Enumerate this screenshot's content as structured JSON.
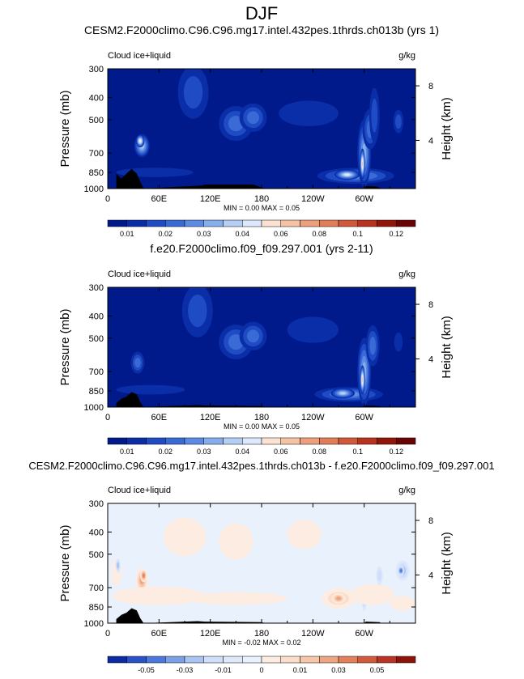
{
  "page": {
    "title": "DJF"
  },
  "scales": {
    "abs": {
      "colors": [
        "#001a8c",
        "#0a2ea8",
        "#1f4cc4",
        "#3a6ad6",
        "#5b8be2",
        "#86aeec",
        "#b4cef4",
        "#dce8fb",
        "#fbe2d2",
        "#f6c2a4",
        "#eea07c",
        "#e27d58",
        "#d1583a",
        "#b8321f",
        "#911509",
        "#6a0404"
      ],
      "labels": [
        {
          "text": "0.01",
          "at": 1
        },
        {
          "text": "0.02",
          "at": 3
        },
        {
          "text": "0.03",
          "at": 5
        },
        {
          "text": "0.04",
          "at": 7
        },
        {
          "text": "0.06",
          "at": 9
        },
        {
          "text": "0.08",
          "at": 11
        },
        {
          "text": "0.1",
          "at": 13
        },
        {
          "text": "0.12",
          "at": 15
        }
      ]
    },
    "diff": {
      "colors": [
        "#0b2aa3",
        "#2752c9",
        "#4a78df",
        "#7aa0ea",
        "#a9c4f3",
        "#cfdefa",
        "#dde9fb",
        "#e9f1fd",
        "#fdece2",
        "#fbddc9",
        "#f7c6a8",
        "#f0a582",
        "#e5805c",
        "#d45a3c",
        "#bb3322",
        "#8f1209"
      ],
      "labels": [
        {
          "text": "-0.05",
          "at": 2
        },
        {
          "text": "-0.03",
          "at": 4
        },
        {
          "text": "-0.01",
          "at": 6
        },
        {
          "text": "0",
          "at": 8
        },
        {
          "text": "0.01",
          "at": 10
        },
        {
          "text": "0.03",
          "at": 12
        },
        {
          "text": "0.05",
          "at": 14
        }
      ]
    }
  },
  "chart_data": [
    {
      "type": "heatmap",
      "title": "CESM2.F2000climo.C96.C96.mg17.intel.432pes.1thrds.ch013b (yrs 1)",
      "variable": "Cloud ice+liquid",
      "units": "g/kg",
      "ylabel": "Pressure (mb)",
      "y2label": "Height (km)",
      "x_ticks": [
        "0",
        "60E",
        "120E",
        "180",
        "120W",
        "60W"
      ],
      "y_ticks": [
        "300",
        "400",
        "500",
        "700",
        "850",
        "1000"
      ],
      "y2_ticks": [
        "8",
        "4"
      ],
      "stats": "MIN =   0.00  MAX =   0.05",
      "scale": "abs",
      "xlim": [
        0,
        360
      ],
      "ylim": [
        1000,
        300
      ],
      "background_level": 0,
      "features": [
        {
          "lon": 40,
          "p": 650,
          "wlon": 9,
          "wp": 75,
          "level": 6
        },
        {
          "lon": 38,
          "p": 620,
          "wlon": 5,
          "wp": 40,
          "level": 8
        },
        {
          "lon": 55,
          "p": 850,
          "wlon": 45,
          "wp": 40,
          "level": 1
        },
        {
          "lon": 100,
          "p": 380,
          "wlon": 18,
          "wp": 130,
          "level": 2
        },
        {
          "lon": 150,
          "p": 520,
          "wlon": 20,
          "wp": 90,
          "level": 3
        },
        {
          "lon": 170,
          "p": 490,
          "wlon": 16,
          "wp": 70,
          "level": 3
        },
        {
          "lon": 235,
          "p": 470,
          "wlon": 35,
          "wp": 60,
          "level": 1
        },
        {
          "lon": 290,
          "p": 880,
          "wlon": 45,
          "wp": 70,
          "level": 4
        },
        {
          "lon": 280,
          "p": 870,
          "wlon": 15,
          "wp": 45,
          "level": 7
        },
        {
          "lon": 300,
          "p": 700,
          "wlon": 8,
          "wp": 230,
          "level": 5
        },
        {
          "lon": 298,
          "p": 780,
          "wlon": 3,
          "wp": 120,
          "level": 9
        },
        {
          "lon": 307,
          "p": 550,
          "wlon": 9,
          "wp": 110,
          "level": 3
        },
        {
          "lon": 312,
          "p": 480,
          "wlon": 6,
          "wp": 130,
          "level": 2
        },
        {
          "lon": 340,
          "p": 510,
          "wlon": 6,
          "wp": 60,
          "level": 2
        }
      ],
      "terrain": [
        [
          10,
          860
        ],
        [
          16,
          905
        ],
        [
          22,
          860
        ],
        [
          28,
          820
        ],
        [
          34,
          860
        ],
        [
          38,
          930
        ],
        [
          42,
          1000
        ],
        [
          110,
          970
        ],
        [
          114,
          960
        ],
        [
          170,
          960
        ],
        [
          184,
          1000
        ],
        [
          300,
          1000
        ],
        [
          302,
          975
        ],
        [
          315,
          980
        ],
        [
          320,
          1000
        ]
      ]
    },
    {
      "type": "heatmap",
      "title": "f.e20.F2000climo.f09_f09.297.001 (yrs 2-11)",
      "variable": "Cloud ice+liquid",
      "units": "g/kg",
      "ylabel": "Pressure (mb)",
      "y2label": "Height (km)",
      "x_ticks": [
        "0",
        "60E",
        "120E",
        "180",
        "120W",
        "60W"
      ],
      "y_ticks": [
        "300",
        "400",
        "500",
        "700",
        "850",
        "1000"
      ],
      "y2_ticks": [
        "8",
        "4"
      ],
      "stats": "MIN =   0.00  MAX =   0.05",
      "scale": "abs",
      "xlim": [
        0,
        360
      ],
      "ylim": [
        1000,
        300
      ],
      "background_level": 0,
      "features": [
        {
          "lon": 35,
          "p": 640,
          "wlon": 8,
          "wp": 70,
          "level": 3
        },
        {
          "lon": 50,
          "p": 840,
          "wlon": 40,
          "wp": 40,
          "level": 1
        },
        {
          "lon": 105,
          "p": 380,
          "wlon": 18,
          "wp": 130,
          "level": 2
        },
        {
          "lon": 150,
          "p": 520,
          "wlon": 20,
          "wp": 90,
          "level": 3
        },
        {
          "lon": 170,
          "p": 490,
          "wlon": 16,
          "wp": 70,
          "level": 3
        },
        {
          "lon": 240,
          "p": 460,
          "wlon": 30,
          "wp": 60,
          "level": 1
        },
        {
          "lon": 282,
          "p": 880,
          "wlon": 40,
          "wp": 65,
          "level": 4
        },
        {
          "lon": 275,
          "p": 870,
          "wlon": 14,
          "wp": 45,
          "level": 6
        },
        {
          "lon": 300,
          "p": 700,
          "wlon": 8,
          "wp": 230,
          "level": 5
        },
        {
          "lon": 298,
          "p": 760,
          "wlon": 3,
          "wp": 110,
          "level": 9
        },
        {
          "lon": 310,
          "p": 540,
          "wlon": 8,
          "wp": 110,
          "level": 3
        },
        {
          "lon": 340,
          "p": 520,
          "wlon": 5,
          "wp": 50,
          "level": 1
        }
      ],
      "terrain": [
        [
          10,
          960
        ],
        [
          16,
          920
        ],
        [
          22,
          900
        ],
        [
          28,
          860
        ],
        [
          34,
          880
        ],
        [
          38,
          950
        ],
        [
          42,
          1000
        ],
        [
          105,
          980
        ],
        [
          114,
          985
        ],
        [
          180,
          990
        ],
        [
          184,
          1000
        ],
        [
          300,
          1000
        ],
        [
          302,
          985
        ],
        [
          318,
          990
        ],
        [
          320,
          1000
        ]
      ]
    },
    {
      "type": "heatmap",
      "title": "CESM2.F2000climo.C96.C96.mg17.intel.432pes.1thrds.ch013b - f.e20.F2000climo.f09_f09.297.001",
      "variable": "Cloud ice+liquid",
      "units": "g/kg",
      "ylabel": "Pressure (mb)",
      "y2label": "Height (km)",
      "x_ticks": [
        "0",
        "60E",
        "120E",
        "180",
        "120W",
        "60W"
      ],
      "y_ticks": [
        "300",
        "400",
        "500",
        "700",
        "850",
        "1000"
      ],
      "y2_ticks": [
        "8",
        "4"
      ],
      "stats": "MIN =  -0.02  MAX =   0.02",
      "scale": "diff",
      "xlim": [
        0,
        360
      ],
      "ylim": [
        1000,
        300
      ],
      "background_level": 7,
      "features": [
        {
          "lon": 10,
          "p": 600,
          "wlon": 6,
          "wp": 80,
          "level": 8
        },
        {
          "lon": 12,
          "p": 560,
          "wlon": 3,
          "wp": 40,
          "level": 4
        },
        {
          "lon": 40,
          "p": 650,
          "wlon": 7,
          "wp": 80,
          "level": 11
        },
        {
          "lon": 42,
          "p": 620,
          "wlon": 4,
          "wp": 40,
          "level": 12
        },
        {
          "lon": 60,
          "p": 760,
          "wlon": 55,
          "wp": 70,
          "level": 8
        },
        {
          "lon": 90,
          "p": 420,
          "wlon": 25,
          "wp": 80,
          "level": 8
        },
        {
          "lon": 150,
          "p": 440,
          "wlon": 20,
          "wp": 80,
          "level": 8
        },
        {
          "lon": 150,
          "p": 780,
          "wlon": 60,
          "wp": 50,
          "level": 8
        },
        {
          "lon": 230,
          "p": 410,
          "wlon": 20,
          "wp": 60,
          "level": 8
        },
        {
          "lon": 270,
          "p": 780,
          "wlon": 20,
          "wp": 80,
          "level": 9
        },
        {
          "lon": 270,
          "p": 780,
          "wlon": 8,
          "wp": 40,
          "level": 11
        },
        {
          "lon": 300,
          "p": 780,
          "wlon": 3,
          "wp": 100,
          "level": 4
        },
        {
          "lon": 310,
          "p": 750,
          "wlon": 25,
          "wp": 80,
          "level": 8
        },
        {
          "lon": 318,
          "p": 620,
          "wlon": 4,
          "wp": 60,
          "level": 5
        },
        {
          "lon": 345,
          "p": 820,
          "wlon": 15,
          "wp": 60,
          "level": 8
        },
        {
          "lon": 345,
          "p": 590,
          "wlon": 8,
          "wp": 60,
          "level": 4
        },
        {
          "lon": 343,
          "p": 590,
          "wlon": 4,
          "wp": 30,
          "level": 2
        }
      ],
      "terrain": [
        [
          10,
          960
        ],
        [
          16,
          920
        ],
        [
          22,
          900
        ],
        [
          28,
          860
        ],
        [
          34,
          880
        ],
        [
          38,
          950
        ],
        [
          42,
          1000
        ],
        [
          105,
          980
        ],
        [
          114,
          985
        ],
        [
          180,
          990
        ],
        [
          184,
          1000
        ],
        [
          300,
          1000
        ],
        [
          302,
          985
        ],
        [
          318,
          990
        ],
        [
          320,
          1000
        ]
      ]
    }
  ]
}
